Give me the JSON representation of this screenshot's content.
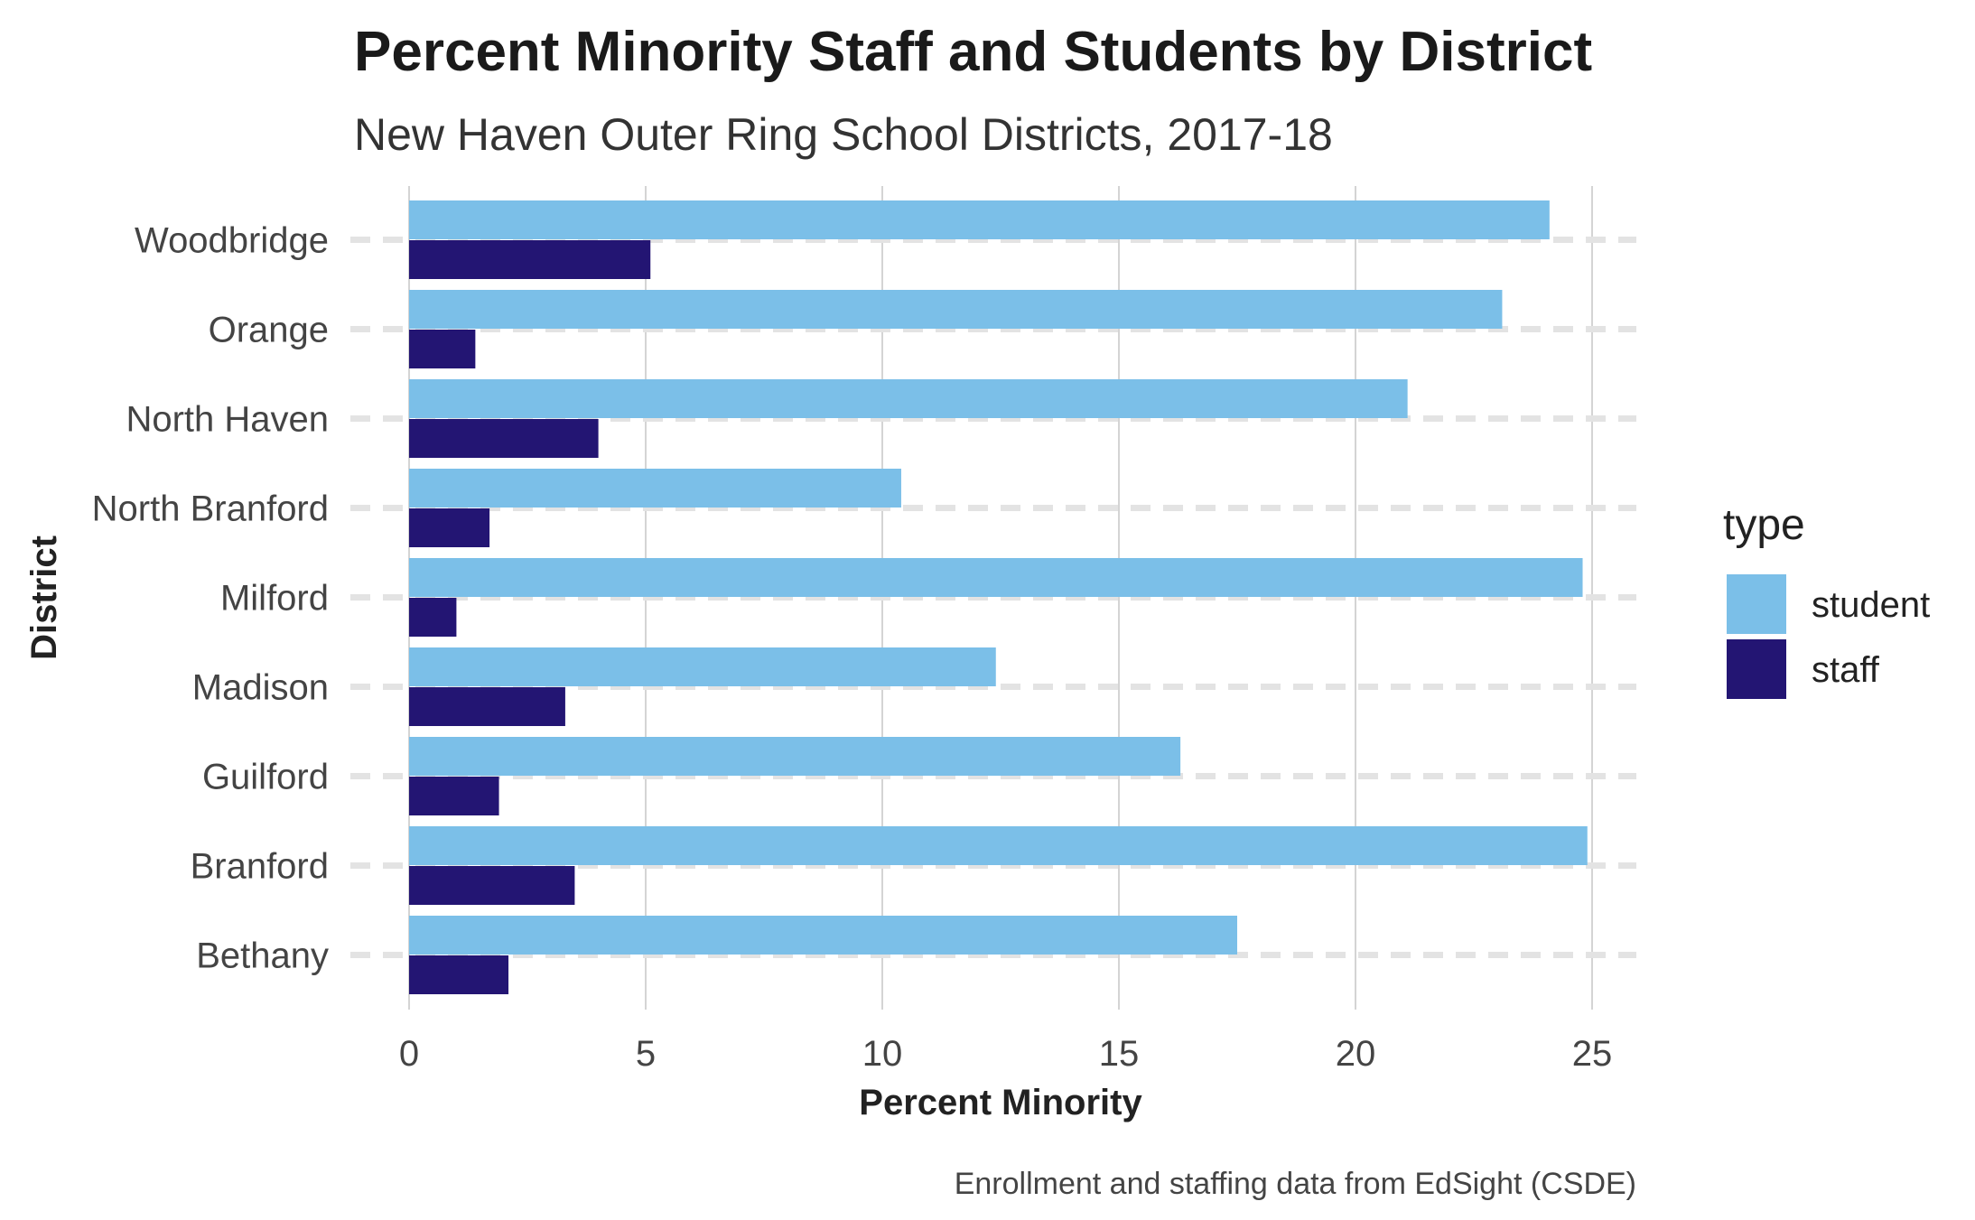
{
  "chart_data": {
    "type": "bar",
    "orientation": "horizontal",
    "title": "Percent Minority Staff and Students by District",
    "subtitle": "New Haven Outer Ring School Districts, 2017-18",
    "xlabel": "Percent Minority",
    "ylabel": "District",
    "caption": "Enrollment and staffing data from EdSight (CSDE)",
    "categories": [
      "Woodbridge",
      "Orange",
      "North Haven",
      "North Branford",
      "Milford",
      "Madison",
      "Guilford",
      "Branford",
      "Bethany"
    ],
    "series": [
      {
        "name": "student",
        "color": "#7BBFE8",
        "values": [
          24.1,
          23.1,
          21.1,
          10.4,
          24.8,
          12.4,
          16.3,
          24.9,
          17.5
        ]
      },
      {
        "name": "staff",
        "color": "#231573",
        "values": [
          5.1,
          1.4,
          4.0,
          1.7,
          1.0,
          3.3,
          1.9,
          3.5,
          2.1
        ]
      }
    ],
    "xlim": [
      0,
      25
    ],
    "xticks": [
      "0",
      "5",
      "10",
      "15",
      "20",
      "25"
    ],
    "legend": {
      "title": "type",
      "position": "right",
      "entries": [
        "student",
        "staff"
      ]
    },
    "grid": true
  }
}
